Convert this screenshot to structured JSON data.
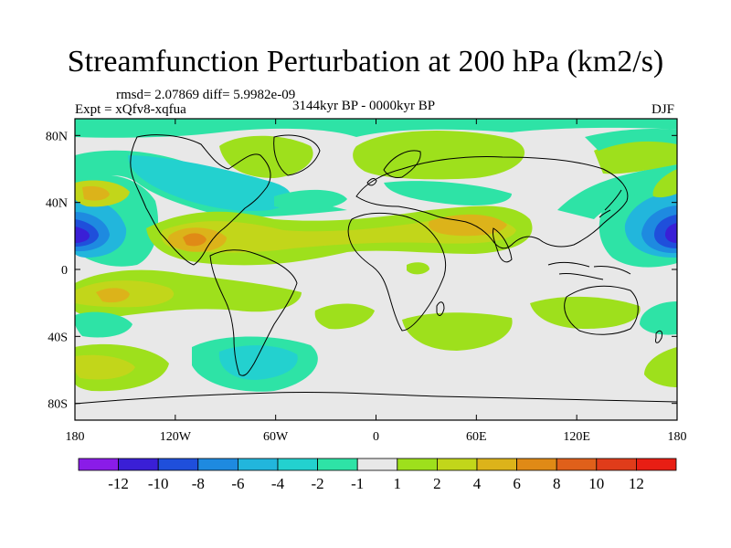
{
  "chart_data": {
    "type": "heatmap",
    "title": "Streamfunction Perturbation at 200 hPa (km2/s)",
    "stats_line": "rmsd= 2.07869  diff= 5.9982e-09",
    "experiment": "Expt = xQfv8-xqfua",
    "period": "3144kyr BP - 0000kyr BP",
    "season": "DJF",
    "x_axis": {
      "range": [
        -180,
        180
      ],
      "tick_values": [
        -180,
        -120,
        -60,
        0,
        60,
        120,
        180
      ],
      "tick_labels": [
        "180",
        "120W",
        "60W",
        "0",
        "60E",
        "120E",
        "180"
      ]
    },
    "y_axis": {
      "range": [
        -90,
        90
      ],
      "tick_values": [
        80,
        40,
        0,
        -40,
        -80
      ],
      "tick_labels": [
        "80N",
        "40N",
        "0",
        "40S",
        "80S"
      ]
    },
    "colorbar": {
      "labels": [
        "-12",
        "-10",
        "-8",
        "-6",
        "-4",
        "-2",
        "-1",
        "1",
        "2",
        "4",
        "6",
        "8",
        "10",
        "12"
      ],
      "colors": [
        "#8a1ce8",
        "#3a1fd6",
        "#1f4fdb",
        "#1e8ae0",
        "#22b6dc",
        "#23d1cf",
        "#2ee3a6",
        "#e8e8e8",
        "#9ee01c",
        "#c2d61a",
        "#dcb31a",
        "#e08a16",
        "#e0601a",
        "#e03c1a",
        "#e81e14"
      ]
    },
    "field_features": [
      {
        "name": "pacific-low-west",
        "lon": -170,
        "lat": 20,
        "value": -12
      },
      {
        "name": "pacific-low-east",
        "lon": 180,
        "lat": 20,
        "value": -12
      },
      {
        "name": "north-pacific-ridge",
        "lon": -165,
        "lat": 42,
        "value": 4
      },
      {
        "name": "south-pacific-ridge",
        "lon": -150,
        "lat": -15,
        "value": 4
      },
      {
        "name": "central-america-ridge",
        "lon": -100,
        "lat": 20,
        "value": 4
      },
      {
        "name": "north-africa-ridge",
        "lon": 50,
        "lat": 25,
        "value": 4
      },
      {
        "name": "canada-ridge",
        "lon": -75,
        "lat": 70,
        "value": 2
      },
      {
        "name": "eurasia-ridge",
        "lon": 20,
        "lat": 70,
        "value": 2
      },
      {
        "name": "north-america-trough",
        "lon": -100,
        "lat": 48,
        "value": -4
      },
      {
        "name": "south-atlantic-trough",
        "lon": -60,
        "lat": -55,
        "value": -4
      },
      {
        "name": "southern-ocean-ridge",
        "lon": -155,
        "lat": -60,
        "value": 2
      }
    ]
  }
}
